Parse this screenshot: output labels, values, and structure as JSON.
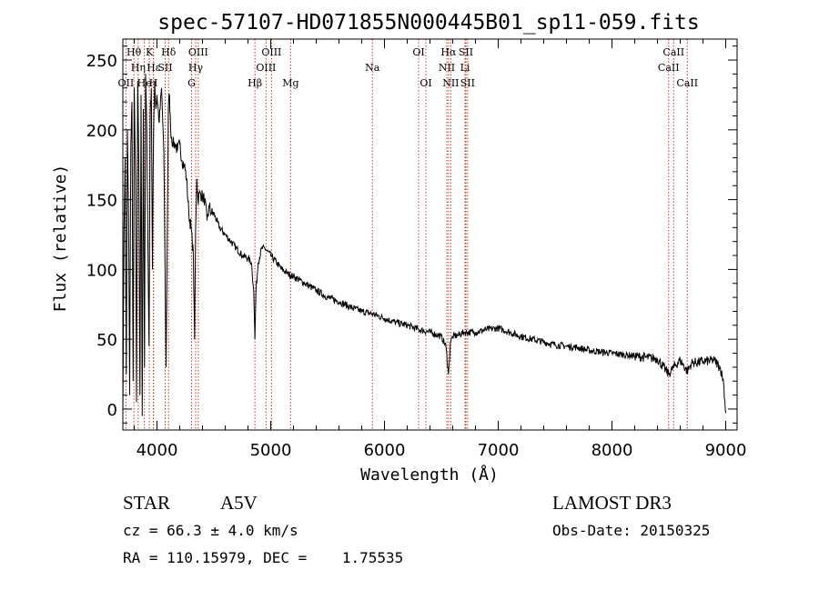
{
  "chart_data": {
    "type": "line",
    "title": "spec-57107-HD071855N000445B01_sp11-059.fits",
    "xlabel": "Wavelength (Å)",
    "ylabel": "Flux (relative)",
    "xlim": [
      3700,
      9100
    ],
    "ylim": [
      -15,
      265
    ],
    "xticks": [
      4000,
      5000,
      6000,
      7000,
      8000,
      9000
    ],
    "yticks": [
      0,
      50,
      100,
      150,
      200,
      250
    ],
    "series": [
      {
        "name": "spectrum",
        "x": [
          3700,
          3710,
          3720,
          3730,
          3740,
          3750,
          3760,
          3770,
          3780,
          3790,
          3800,
          3810,
          3820,
          3830,
          3840,
          3850,
          3860,
          3870,
          3880,
          3890,
          3900,
          3910,
          3920,
          3930,
          3940,
          3950,
          3960,
          3970,
          3980,
          3990,
          4000,
          4020,
          4040,
          4060,
          4080,
          4100,
          4110,
          4120,
          4140,
          4160,
          4180,
          4200,
          4220,
          4240,
          4260,
          4280,
          4300,
          4320,
          4330,
          4340,
          4350,
          4360,
          4380,
          4400,
          4420,
          4440,
          4460,
          4480,
          4500,
          4550,
          4600,
          4650,
          4700,
          4750,
          4800,
          4830,
          4850,
          4861,
          4870,
          4890,
          4920,
          4950,
          5000,
          5050,
          5100,
          5150,
          5200,
          5300,
          5400,
          5500,
          5600,
          5700,
          5800,
          5900,
          6000,
          6100,
          6200,
          6300,
          6400,
          6500,
          6540,
          6563,
          6580,
          6600,
          6650,
          6700,
          6800,
          6900,
          7000,
          7100,
          7200,
          7300,
          7400,
          7500,
          7600,
          7700,
          7800,
          7900,
          8000,
          8100,
          8200,
          8300,
          8400,
          8498,
          8542,
          8600,
          8662,
          8700,
          8800,
          8900,
          8950,
          8980,
          9000
        ],
        "values": [
          -5,
          130,
          180,
          25,
          200,
          140,
          10,
          190,
          220,
          20,
          230,
          170,
          5,
          235,
          180,
          10,
          225,
          -5,
          215,
          30,
          240,
          200,
          120,
          45,
          210,
          230,
          100,
          200,
          235,
          215,
          225,
          205,
          230,
          185,
          30,
          215,
          225,
          200,
          190,
          190,
          185,
          190,
          178,
          175,
          165,
          140,
          130,
          110,
          50,
          130,
          165,
          150,
          155,
          152,
          150,
          135,
          145,
          140,
          140,
          130,
          125,
          120,
          115,
          110,
          108,
          105,
          85,
          50,
          85,
          105,
          115,
          115,
          110,
          105,
          100,
          97,
          95,
          90,
          85,
          80,
          77,
          73,
          70,
          68,
          65,
          62,
          60,
          57,
          55,
          52,
          45,
          25,
          48,
          52,
          53,
          55,
          55,
          57,
          58,
          55,
          52,
          50,
          48,
          46,
          45,
          44,
          42,
          41,
          40,
          39,
          38,
          37,
          36,
          25,
          30,
          35,
          27,
          33,
          34,
          35,
          30,
          20,
          -3
        ]
      }
    ],
    "lines": [
      {
        "label": "Hθ",
        "wl": 3797,
        "row": 0
      },
      {
        "label": "OII",
        "wl": 3727,
        "row": 2
      },
      {
        "label": "Hη",
        "wl": 3835,
        "row": 1
      },
      {
        "label": "He",
        "wl": 3889,
        "row": 2
      },
      {
        "label": "K",
        "wl": 3933,
        "row": 0
      },
      {
        "label": "H",
        "wl": 3968,
        "row": 2
      },
      {
        "label": "Hε",
        "wl": 3970,
        "row": 1
      },
      {
        "label": "SII",
        "wl": 4072,
        "row": 1
      },
      {
        "label": "Hδ",
        "wl": 4102,
        "row": 0
      },
      {
        "label": "G",
        "wl": 4304,
        "row": 2
      },
      {
        "label": "Hγ",
        "wl": 4340,
        "row": 1
      },
      {
        "label": "OIII",
        "wl": 4363,
        "row": 0
      },
      {
        "label": "Hβ",
        "wl": 4861,
        "row": 2
      },
      {
        "label": "OIII",
        "wl": 4959,
        "row": 1
      },
      {
        "label": "OIII",
        "wl": 5007,
        "row": 0
      },
      {
        "label": "Mg",
        "wl": 5175,
        "row": 2
      },
      {
        "label": "Na",
        "wl": 5894,
        "row": 1
      },
      {
        "label": "OI",
        "wl": 6300,
        "row": 0
      },
      {
        "label": "OI",
        "wl": 6364,
        "row": 2
      },
      {
        "label": "NII",
        "wl": 6548,
        "row": 1
      },
      {
        "label": "Hα",
        "wl": 6563,
        "row": 0
      },
      {
        "label": "NII",
        "wl": 6583,
        "row": 2
      },
      {
        "label": "Li",
        "wl": 6708,
        "row": 1
      },
      {
        "label": "SII",
        "wl": 6716,
        "row": 0
      },
      {
        "label": "SII",
        "wl": 6731,
        "row": 2
      },
      {
        "label": "CaII",
        "wl": 8498,
        "row": 1
      },
      {
        "label": "CaII",
        "wl": 8542,
        "row": 0
      },
      {
        "label": "CaII",
        "wl": 8662,
        "row": 2
      }
    ]
  },
  "info": {
    "star_class": "STAR",
    "subclass": "A5V",
    "survey": "LAMOST DR3",
    "cz": "cz = 66.3 ± 4.0 km/s",
    "obs_date": "Obs-Date: 20150325",
    "coords": "RA = 110.15979, DEC =    1.75535"
  },
  "colors": {
    "spectrum": "#000000",
    "line_marker": "#c0392b"
  }
}
